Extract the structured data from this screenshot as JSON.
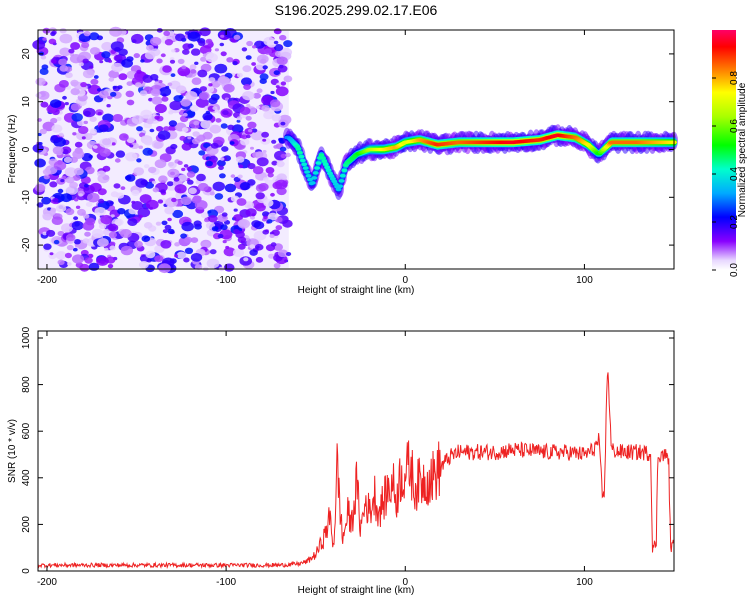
{
  "title": "S196.2025.299.02.17.E06",
  "chart_data": [
    {
      "type": "heatmap",
      "xlabel": "Height of straight line (km)",
      "ylabel": "Frequency (Hz)",
      "xlim": [
        -205,
        150
      ],
      "ylim": [
        -25,
        25
      ],
      "x_ticks": [
        -200,
        -100,
        0,
        100
      ],
      "x_tick_labels": [
        "-200",
        "-100",
        "0",
        "100"
      ],
      "y_ticks": [
        -20,
        -10,
        0,
        10,
        20
      ],
      "y_tick_labels": [
        "-20",
        "-10",
        "0",
        "10",
        "20"
      ],
      "colorbar": {
        "label": "Normalized spectral amplitude",
        "range": [
          0,
          1
        ],
        "ticks": [
          0.0,
          0.2,
          0.4,
          0.6,
          0.8
        ],
        "tick_labels": [
          "0.0",
          "0.2",
          "0.4",
          "0.6",
          "0.8"
        ]
      },
      "noise_region_x": [
        -205,
        -65
      ],
      "ridge": [
        {
          "x": -65,
          "f": 2.5,
          "a": 0.3
        },
        {
          "x": -60,
          "f": 0.5,
          "a": 0.45
        },
        {
          "x": -56,
          "f": -3.5,
          "a": 0.4
        },
        {
          "x": -52,
          "f": -7.5,
          "a": 0.35
        },
        {
          "x": -47,
          "f": -1,
          "a": 0.45
        },
        {
          "x": -42,
          "f": -5,
          "a": 0.4
        },
        {
          "x": -37,
          "f": -8.5,
          "a": 0.35
        },
        {
          "x": -33,
          "f": -3,
          "a": 0.45
        },
        {
          "x": -27,
          "f": -1,
          "a": 0.5
        },
        {
          "x": -20,
          "f": 0,
          "a": 0.65
        },
        {
          "x": -12,
          "f": 0,
          "a": 0.75
        },
        {
          "x": -5,
          "f": 0.5,
          "a": 0.8
        },
        {
          "x": 0,
          "f": 1.5,
          "a": 0.7
        },
        {
          "x": 8,
          "f": 2,
          "a": 0.8
        },
        {
          "x": 18,
          "f": 1,
          "a": 0.9
        },
        {
          "x": 30,
          "f": 1.5,
          "a": 0.85
        },
        {
          "x": 45,
          "f": 1.5,
          "a": 0.9
        },
        {
          "x": 60,
          "f": 1.5,
          "a": 0.95
        },
        {
          "x": 75,
          "f": 2,
          "a": 0.9
        },
        {
          "x": 85,
          "f": 3,
          "a": 0.95
        },
        {
          "x": 95,
          "f": 2.5,
          "a": 0.85
        },
        {
          "x": 102,
          "f": 1,
          "a": 0.75
        },
        {
          "x": 108,
          "f": -1,
          "a": 0.5
        },
        {
          "x": 115,
          "f": 1.5,
          "a": 0.85
        },
        {
          "x": 130,
          "f": 1.5,
          "a": 0.85
        },
        {
          "x": 140,
          "f": 1.5,
          "a": 0.8
        },
        {
          "x": 150,
          "f": 1.5,
          "a": 0.75
        }
      ]
    },
    {
      "type": "line",
      "xlabel": "Height of straight line (km)",
      "ylabel": "SNR (10 * v/v)",
      "xlim": [
        -205,
        150
      ],
      "ylim": [
        0,
        1030
      ],
      "x_ticks": [
        -200,
        -100,
        0,
        100
      ],
      "x_tick_labels": [
        "-200",
        "-100",
        "0",
        "100"
      ],
      "y_ticks": [
        0,
        200,
        400,
        600,
        800,
        1000
      ],
      "y_tick_labels": [
        "0",
        "200",
        "400",
        "600",
        "800",
        "1000"
      ],
      "series": [
        {
          "name": "SNR",
          "color": "#ee2222",
          "x": [
            -205,
            -150,
            -100,
            -70,
            -60,
            -55,
            -50,
            -45,
            -42,
            -40,
            -38,
            -35,
            -32,
            -30,
            -27,
            -25,
            -22,
            -20,
            -17,
            -15,
            -12,
            -10,
            -7,
            -5,
            -3,
            0,
            3,
            5,
            10,
            15,
            20,
            25,
            30,
            40,
            50,
            60,
            70,
            80,
            90,
            100,
            105,
            108,
            110,
            111,
            112,
            113,
            115,
            120,
            130,
            137,
            138,
            140,
            141,
            143,
            145,
            147,
            148,
            149,
            150
          ],
          "y": [
            25,
            25,
            25,
            25,
            30,
            40,
            70,
            150,
            230,
            100,
            450,
            130,
            250,
            200,
            380,
            180,
            300,
            250,
            330,
            250,
            300,
            340,
            380,
            300,
            400,
            420,
            450,
            360,
            390,
            400,
            450,
            490,
            510,
            510,
            510,
            520,
            515,
            510,
            510,
            500,
            520,
            560,
            330,
            310,
            620,
            900,
            520,
            510,
            510,
            505,
            110,
            95,
            500,
            500,
            495,
            490,
            120,
            100,
            110
          ]
        }
      ]
    }
  ]
}
